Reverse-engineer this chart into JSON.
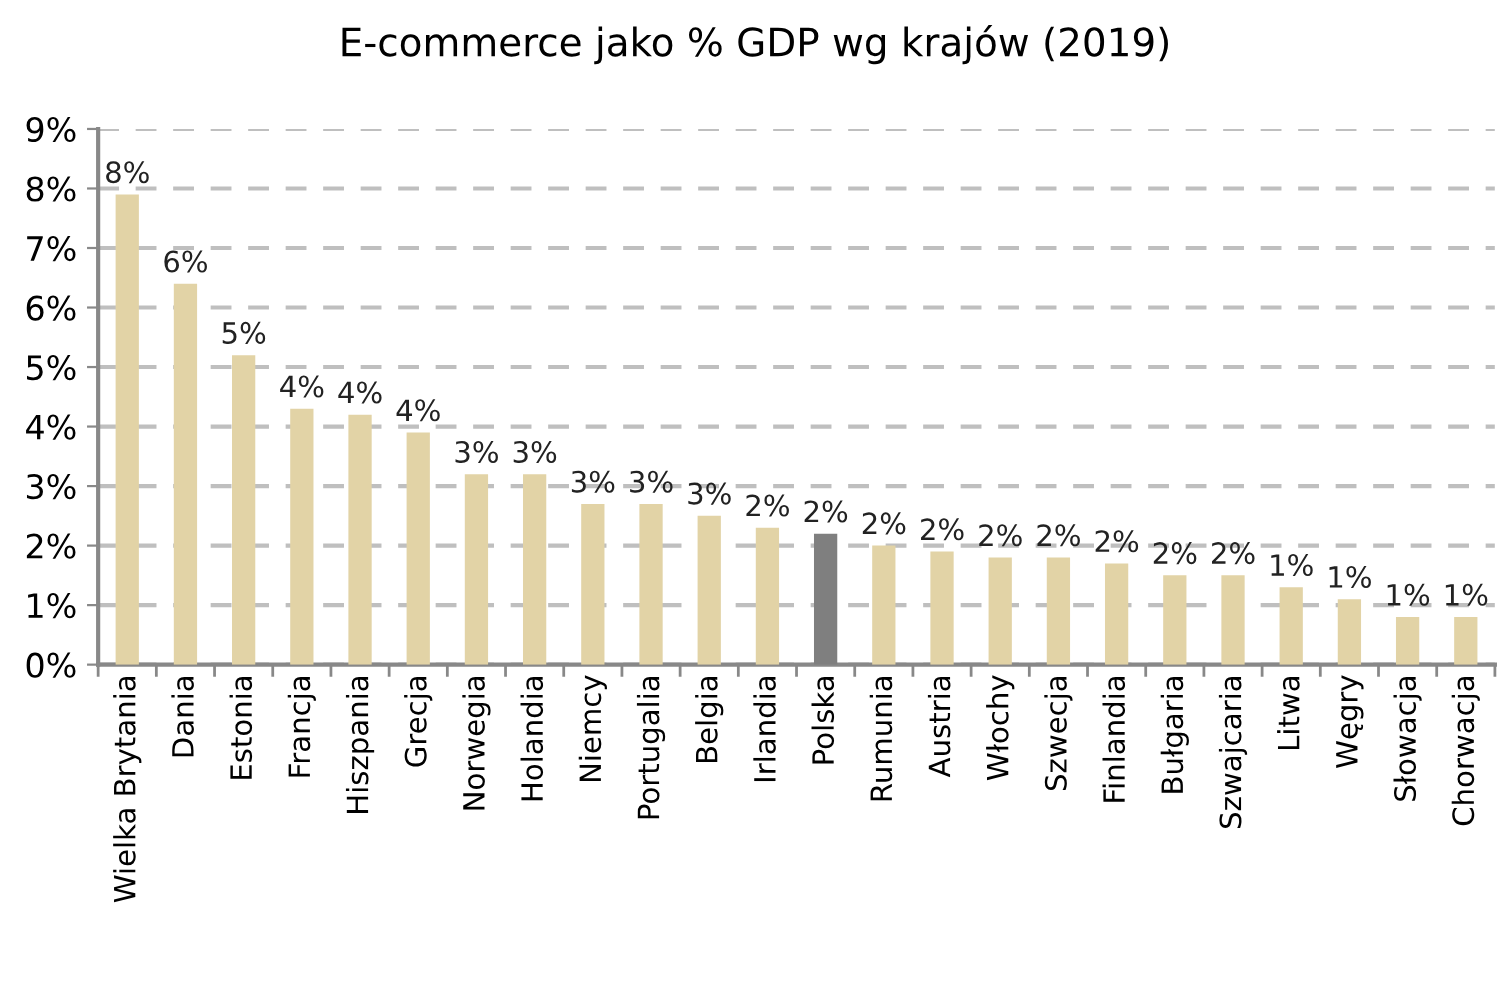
{
  "chart_data": {
    "type": "bar",
    "title": "E-commerce jako % GDP wg krajów (2019)",
    "categories": [
      "Wielka Brytania",
      "Dania",
      "Estonia",
      "Francja",
      "Hiszpania",
      "Grecja",
      "Norwegia",
      "Holandia",
      "Niemcy",
      "Portugalia",
      "Belgia",
      "Irlandia",
      "Polska",
      "Rumunia",
      "Austria",
      "Włochy",
      "Szwecja",
      "Finlandia",
      "Bułgaria",
      "Szwajcaria",
      "Litwa",
      "Węgry",
      "Słowacja",
      "Chorwacja"
    ],
    "values": [
      7.9,
      6.4,
      5.2,
      4.3,
      4.2,
      3.9,
      3.2,
      3.2,
      2.7,
      2.7,
      2.5,
      2.3,
      2.2,
      2.0,
      1.9,
      1.8,
      1.8,
      1.7,
      1.5,
      1.5,
      1.3,
      1.1,
      0.8,
      0.8
    ],
    "colors": [
      "#e2d3a6",
      "#e2d3a6",
      "#e2d3a6",
      "#e2d3a6",
      "#e2d3a6",
      "#e2d3a6",
      "#e2d3a6",
      "#e2d3a6",
      "#e2d3a6",
      "#e2d3a6",
      "#e2d3a6",
      "#e2d3a6",
      "#7f7f7f",
      "#e2d3a6",
      "#e2d3a6",
      "#e2d3a6",
      "#e2d3a6",
      "#e2d3a6",
      "#e2d3a6",
      "#e2d3a6",
      "#e2d3a6",
      "#e2d3a6",
      "#e2d3a6",
      "#e2d3a6"
    ],
    "value_labels": [
      "8%",
      "6%",
      "5%",
      "4%",
      "4%",
      "4%",
      "3%",
      "3%",
      "3%",
      "3%",
      "3%",
      "2%",
      "2%",
      "2%",
      "2%",
      "2%",
      "2%",
      "2%",
      "2%",
      "2%",
      "1%",
      "1%",
      "1%",
      "1%"
    ],
    "ylim": [
      0,
      9
    ],
    "yticks": [
      {
        "value": 0,
        "label": "0%"
      },
      {
        "value": 1,
        "label": "1%"
      },
      {
        "value": 2,
        "label": "2%"
      },
      {
        "value": 3,
        "label": "3%"
      },
      {
        "value": 4,
        "label": "4%"
      },
      {
        "value": 5,
        "label": "5%"
      },
      {
        "value": 6,
        "label": "6%"
      },
      {
        "value": 7,
        "label": "7%"
      },
      {
        "value": 8,
        "label": "8%"
      },
      {
        "value": 9,
        "label": "9%"
      }
    ],
    "grid": "y",
    "line_style": "dashed"
  }
}
